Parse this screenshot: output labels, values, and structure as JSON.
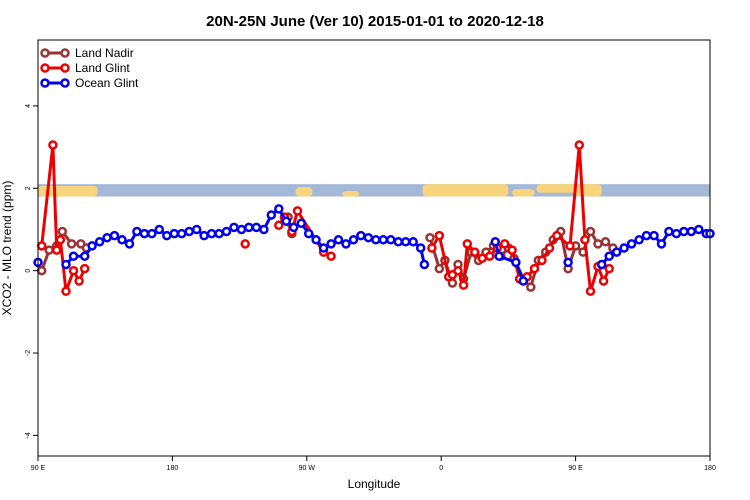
{
  "chart_data": {
    "type": "line",
    "title": "20N-25N June (Ver 10)   2015-01-01 to 2020-12-18",
    "xlabel": "Longitude",
    "ylabel": "XCO2 - MLO trend (ppm)",
    "xlim": [
      90,
      450
    ],
    "ylim": [
      -4.5,
      5.6
    ],
    "x_ticks": [
      {
        "value": 90,
        "label": "90 E"
      },
      {
        "value": 162,
        "label": "180"
      },
      {
        "value": 234,
        "label": "90 W"
      },
      {
        "value": 306,
        "label": "0"
      },
      {
        "value": 378,
        "label": "90 E"
      },
      {
        "value": 450,
        "label": "180"
      }
    ],
    "y_ticks": [
      {
        "value": -4,
        "label": "-4"
      },
      {
        "value": -2,
        "label": "-2"
      },
      {
        "value": 0,
        "label": "0"
      },
      {
        "value": 2,
        "label": "2"
      },
      {
        "value": 4,
        "label": "4"
      }
    ],
    "map_strip": {
      "ymin": 1.8,
      "ymax": 2.1,
      "ocean_color": "#a4b8d8",
      "land_color": "#f8d47c"
    },
    "legend_position": "top-left",
    "series": [
      {
        "name": "Land Nadir",
        "color": "#993333",
        "points": [
          [
            92,
            0.0
          ],
          [
            96,
            0.5
          ],
          [
            100,
            0.6
          ],
          [
            103,
            0.95
          ],
          [
            108,
            0.65
          ],
          [
            113,
            0.65
          ],
          [
            116,
            0.55
          ],
          [
            224,
            1.3
          ],
          [
            226,
            0.9
          ],
          [
            300,
            0.8
          ],
          [
            305,
            0.05
          ],
          [
            308,
            0.25
          ],
          [
            312,
            -0.3
          ],
          [
            315,
            0.15
          ],
          [
            318,
            -0.2
          ],
          [
            322,
            0.45
          ],
          [
            326,
            0.25
          ],
          [
            330,
            0.45
          ],
          [
            334,
            0.6
          ],
          [
            338,
            0.35
          ],
          [
            342,
            0.55
          ],
          [
            345,
            0.3
          ],
          [
            350,
            -0.2
          ],
          [
            354,
            -0.4
          ],
          [
            358,
            0.25
          ],
          [
            362,
            0.45
          ],
          [
            366,
            0.75
          ],
          [
            370,
            0.95
          ],
          [
            374,
            0.05
          ],
          [
            378,
            0.6
          ],
          [
            382,
            0.45
          ],
          [
            386,
            0.95
          ],
          [
            390,
            0.65
          ],
          [
            394,
            0.7
          ],
          [
            398,
            0.55
          ]
        ]
      },
      {
        "name": "Land Glint",
        "color": "#ee0000",
        "points": [
          [
            92,
            0.6
          ],
          [
            98,
            3.05
          ],
          [
            100,
            0.5
          ],
          [
            102,
            0.75
          ],
          [
            105,
            -0.5
          ],
          [
            109,
            0.0
          ],
          [
            112,
            -0.25
          ],
          [
            115,
            0.05
          ],
          [
            201,
            0.65
          ],
          [
            219,
            1.1
          ],
          [
            222,
            1.3
          ],
          [
            226,
            0.95
          ],
          [
            229,
            1.45
          ],
          [
            243,
            0.45
          ],
          [
            247,
            0.35
          ],
          [
            301,
            0.55
          ],
          [
            305,
            0.85
          ],
          [
            310,
            -0.15
          ],
          [
            312,
            -0.1
          ],
          [
            315,
            0.0
          ],
          [
            318,
            -0.35
          ],
          [
            320,
            0.65
          ],
          [
            324,
            0.45
          ],
          [
            328,
            0.3
          ],
          [
            332,
            0.35
          ],
          [
            336,
            0.55
          ],
          [
            340,
            0.65
          ],
          [
            344,
            0.5
          ],
          [
            348,
            -0.2
          ],
          [
            352,
            -0.15
          ],
          [
            356,
            0.05
          ],
          [
            360,
            0.25
          ],
          [
            364,
            0.55
          ],
          [
            368,
            0.85
          ],
          [
            375,
            0.6
          ],
          [
            380,
            3.05
          ],
          [
            383,
            0.75
          ],
          [
            386,
            -0.5
          ],
          [
            390,
            0.1
          ],
          [
            393,
            -0.25
          ],
          [
            396,
            0.05
          ]
        ]
      },
      {
        "name": "Ocean Glint",
        "color": "#0000ee",
        "points": [
          [
            90,
            0.2
          ],
          [
            105,
            0.15
          ],
          [
            109,
            0.35
          ],
          [
            115,
            0.35
          ],
          [
            119,
            0.6
          ],
          [
            123,
            0.7
          ],
          [
            127,
            0.8
          ],
          [
            131,
            0.85
          ],
          [
            135,
            0.75
          ],
          [
            139,
            0.65
          ],
          [
            143,
            0.95
          ],
          [
            147,
            0.9
          ],
          [
            151,
            0.9
          ],
          [
            155,
            1.0
          ],
          [
            159,
            0.85
          ],
          [
            163,
            0.9
          ],
          [
            167,
            0.9
          ],
          [
            171,
            0.95
          ],
          [
            175,
            1.0
          ],
          [
            179,
            0.85
          ],
          [
            183,
            0.9
          ],
          [
            187,
            0.9
          ],
          [
            191,
            0.95
          ],
          [
            195,
            1.05
          ],
          [
            199,
            1.0
          ],
          [
            203,
            1.05
          ],
          [
            207,
            1.05
          ],
          [
            211,
            1.0
          ],
          [
            215,
            1.35
          ],
          [
            219,
            1.5
          ],
          [
            223,
            1.2
          ],
          [
            227,
            1.05
          ],
          [
            231,
            1.15
          ],
          [
            235,
            0.9
          ],
          [
            239,
            0.75
          ],
          [
            243,
            0.55
          ],
          [
            247,
            0.65
          ],
          [
            251,
            0.75
          ],
          [
            255,
            0.65
          ],
          [
            259,
            0.75
          ],
          [
            263,
            0.85
          ],
          [
            267,
            0.8
          ],
          [
            271,
            0.75
          ],
          [
            275,
            0.75
          ],
          [
            279,
            0.75
          ],
          [
            283,
            0.7
          ],
          [
            287,
            0.7
          ],
          [
            291,
            0.7
          ],
          [
            295,
            0.55
          ],
          [
            297,
            0.15
          ],
          [
            335,
            0.7
          ],
          [
            337,
            0.35
          ],
          [
            346,
            0.2
          ],
          [
            350,
            -0.25
          ],
          [
            374,
            0.2
          ],
          [
            392,
            0.15
          ],
          [
            396,
            0.35
          ],
          [
            400,
            0.45
          ],
          [
            404,
            0.55
          ],
          [
            408,
            0.65
          ],
          [
            412,
            0.75
          ],
          [
            416,
            0.85
          ],
          [
            420,
            0.85
          ],
          [
            424,
            0.65
          ],
          [
            428,
            0.95
          ],
          [
            432,
            0.9
          ],
          [
            436,
            0.95
          ],
          [
            440,
            0.95
          ],
          [
            444,
            1.0
          ],
          [
            448,
            0.9
          ],
          [
            450,
            0.9
          ]
        ]
      }
    ]
  }
}
